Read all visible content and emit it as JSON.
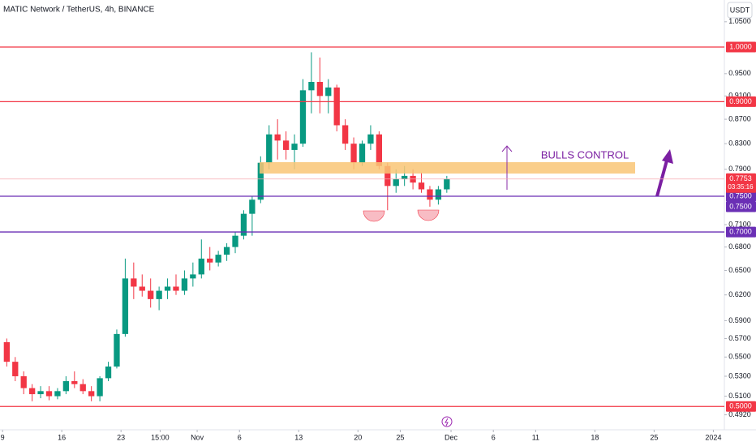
{
  "chart_data": {
    "type": "candlestick",
    "title": "MATIC Network / TetherUS, 4h, BINANCE",
    "currency": "USDT",
    "annotation": "BULLS CONTROL",
    "log_scale": true,
    "up_color": "#089981",
    "down_color": "#f23645",
    "xlim": [
      -0.3,
      85.3
    ],
    "xticks": [
      {
        "value": 0,
        "label": "9"
      },
      {
        "value": 7,
        "label": "16"
      },
      {
        "value": 14,
        "label": "23"
      },
      {
        "value": 18.625,
        "label": "15:00"
      },
      {
        "value": 23,
        "label": "Nov"
      },
      {
        "value": 28,
        "label": "6"
      },
      {
        "value": 35,
        "label": "13"
      },
      {
        "value": 42,
        "label": "20"
      },
      {
        "value": 47,
        "label": "25"
      },
      {
        "value": 53,
        "label": "Dec"
      },
      {
        "value": 58,
        "label": "6"
      },
      {
        "value": 63,
        "label": "11"
      },
      {
        "value": 70,
        "label": "18"
      },
      {
        "value": 77,
        "label": "25"
      },
      {
        "value": 84,
        "label": "2024"
      }
    ],
    "ylim": [
      0.478,
      1.095
    ],
    "yticks": [
      {
        "value": 1.05,
        "label": "1.0500"
      },
      {
        "value": 0.95,
        "label": "0.9500"
      },
      {
        "value": 0.91,
        "label": "0.9100"
      },
      {
        "value": 0.87,
        "label": "0.8700"
      },
      {
        "value": 0.83,
        "label": "0.8300"
      },
      {
        "value": 0.79,
        "label": "0.7900"
      },
      {
        "value": 0.71,
        "label": "0.7100"
      },
      {
        "value": 0.68,
        "label": "0.6800"
      },
      {
        "value": 0.65,
        "label": "0.6500"
      },
      {
        "value": 0.62,
        "label": "0.6200"
      },
      {
        "value": 0.59,
        "label": "0.5900"
      },
      {
        "value": 0.57,
        "label": "0.5700"
      },
      {
        "value": 0.55,
        "label": "0.5500"
      },
      {
        "value": 0.53,
        "label": "0.5300"
      },
      {
        "value": 0.51,
        "label": "0.5100"
      },
      {
        "value": 0.492,
        "label": "0.4920"
      }
    ],
    "price_lines": [
      {
        "value": 1,
        "label": "1.0000",
        "color": "#f23645"
      },
      {
        "value": 0.9,
        "label": "0.9000",
        "color": "#f23645"
      },
      {
        "value": 0.75,
        "label": "0.7500",
        "color": "#6a2fb5"
      },
      {
        "value": 0.75,
        "label": "0.7500",
        "color": "#6a2fb5"
      },
      {
        "value": 0.7,
        "label": "0.7000",
        "color": "#6a2fb5"
      },
      {
        "value": 0.5,
        "label": "0.5000",
        "color": "#f23645"
      }
    ],
    "last_price": {
      "value": 0.7753,
      "label": "0.7753",
      "countdown": "03:35:16",
      "color": "#f23645"
    },
    "open": [
      0.566,
      0.545,
      0.53,
      0.518,
      0.512,
      0.515,
      0.51,
      0.515,
      0.525,
      0.522,
      0.515,
      0.51,
      0.528,
      0.54,
      0.575,
      0.64,
      0.63,
      0.625,
      0.615,
      0.625,
      0.63,
      0.625,
      0.64,
      0.645,
      0.665,
      0.66,
      0.67,
      0.68,
      0.695,
      0.725,
      0.745,
      0.8,
      0.845,
      0.835,
      0.82,
      0.83,
      0.92,
      0.935,
      0.91,
      0.925,
      0.86,
      0.83,
      0.8,
      0.83,
      0.845,
      0.795,
      0.765,
      0.775,
      0.78,
      0.77,
      0.76,
      0.745,
      0.76
    ],
    "high": [
      0.57,
      0.55,
      0.535,
      0.522,
      0.52,
      0.52,
      0.518,
      0.53,
      0.535,
      0.527,
      0.52,
      0.53,
      0.545,
      0.58,
      0.665,
      0.66,
      0.645,
      0.64,
      0.63,
      0.64,
      0.645,
      0.65,
      0.66,
      0.69,
      0.68,
      0.675,
      0.685,
      0.7,
      0.73,
      0.75,
      0.81,
      0.86,
      0.87,
      0.85,
      0.845,
      0.94,
      0.99,
      0.98,
      0.94,
      0.93,
      0.87,
      0.84,
      0.835,
      0.86,
      0.85,
      0.8,
      0.79,
      0.795,
      0.79,
      0.785,
      0.765,
      0.765,
      0.78
    ],
    "low": [
      0.54,
      0.525,
      0.512,
      0.505,
      0.508,
      0.506,
      0.507,
      0.512,
      0.518,
      0.512,
      0.505,
      0.505,
      0.525,
      0.538,
      0.572,
      0.615,
      0.618,
      0.605,
      0.602,
      0.615,
      0.62,
      0.62,
      0.63,
      0.64,
      0.65,
      0.655,
      0.662,
      0.672,
      0.69,
      0.695,
      0.74,
      0.79,
      0.805,
      0.805,
      0.79,
      0.825,
      0.88,
      0.88,
      0.88,
      0.85,
      0.82,
      0.79,
      0.795,
      0.82,
      0.79,
      0.73,
      0.755,
      0.765,
      0.76,
      0.755,
      0.735,
      0.738,
      0.755
    ],
    "close": [
      0.545,
      0.53,
      0.518,
      0.512,
      0.515,
      0.51,
      0.515,
      0.525,
      0.522,
      0.515,
      0.51,
      0.528,
      0.54,
      0.575,
      0.64,
      0.63,
      0.625,
      0.615,
      0.625,
      0.63,
      0.625,
      0.64,
      0.645,
      0.665,
      0.66,
      0.67,
      0.68,
      0.695,
      0.725,
      0.745,
      0.8,
      0.845,
      0.835,
      0.82,
      0.83,
      0.92,
      0.935,
      0.91,
      0.925,
      0.86,
      0.83,
      0.8,
      0.83,
      0.845,
      0.795,
      0.765,
      0.775,
      0.78,
      0.77,
      0.76,
      0.745,
      0.76,
      0.7753
    ]
  }
}
